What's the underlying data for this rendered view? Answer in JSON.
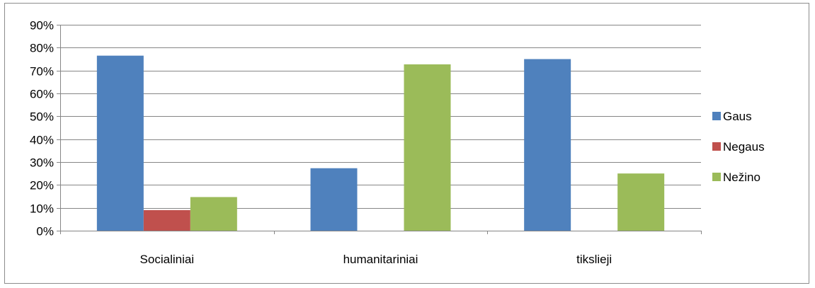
{
  "chart_data": {
    "type": "bar",
    "title": "",
    "xlabel": "",
    "ylabel": "",
    "categories": [
      "Socialiniai",
      "humanitariniai",
      "tikslieji"
    ],
    "series": [
      {
        "name": "Gaus",
        "values": [
          76.5,
          27.3,
          75.0
        ],
        "color": "#4f81bd"
      },
      {
        "name": "Negaus",
        "values": [
          9.0,
          0,
          0
        ],
        "color": "#c0504d"
      },
      {
        "name": "Nežino",
        "values": [
          14.7,
          72.7,
          25.0
        ],
        "color": "#9bbb59"
      }
    ],
    "ylim": [
      0,
      90
    ],
    "yticks": [
      0,
      10,
      20,
      30,
      40,
      50,
      60,
      70,
      80,
      90
    ],
    "ytick_labels": [
      "0%",
      "10%",
      "20%",
      "30%",
      "40%",
      "50%",
      "60%",
      "70%",
      "80%",
      "90%"
    ],
    "grid": true,
    "legend_position": "right"
  }
}
